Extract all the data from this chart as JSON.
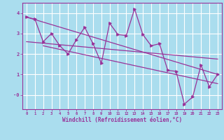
{
  "xlabel": "Windchill (Refroidissement éolien,°C)",
  "bg_color": "#aaddee",
  "grid_color": "#ffffff",
  "line_color": "#993399",
  "x_data": [
    0,
    1,
    2,
    3,
    4,
    5,
    6,
    7,
    8,
    9,
    10,
    11,
    12,
    13,
    14,
    15,
    16,
    17,
    18,
    19,
    20,
    21,
    22,
    23
  ],
  "y_main": [
    3.8,
    3.7,
    2.6,
    3.0,
    2.4,
    2.0,
    2.7,
    3.3,
    2.5,
    1.55,
    3.5,
    2.95,
    2.9,
    4.2,
    2.95,
    2.4,
    2.5,
    1.2,
    1.15,
    -0.45,
    -0.1,
    1.45,
    0.4,
    1.0
  ],
  "y_trend1_x": [
    0,
    23
  ],
  "y_trend1_y": [
    3.8,
    1.0
  ],
  "y_trend2_x": [
    0,
    23
  ],
  "y_trend2_y": [
    2.6,
    1.75
  ],
  "y_trend3_x": [
    2,
    23
  ],
  "y_trend3_y": [
    2.4,
    0.55
  ],
  "xlim": [
    -0.5,
    23.5
  ],
  "ylim": [
    -0.7,
    4.5
  ],
  "yticks": [
    0,
    1,
    2,
    3,
    4
  ],
  "ytick_labels": [
    "-0",
    "1",
    "2",
    "3",
    "4"
  ],
  "xticks": [
    0,
    1,
    2,
    3,
    4,
    5,
    6,
    7,
    8,
    9,
    10,
    11,
    12,
    13,
    14,
    15,
    16,
    17,
    18,
    19,
    20,
    21,
    22,
    23
  ]
}
